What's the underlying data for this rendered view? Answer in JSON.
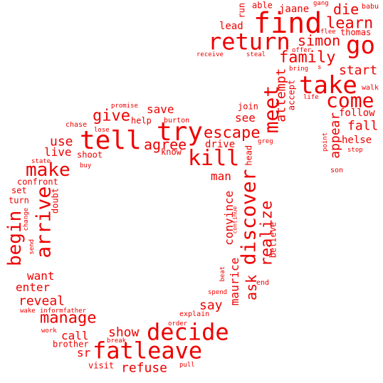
{
  "style": {
    "word_color": "#ee0000"
  },
  "words": [
    {
      "text": "find"
    },
    {
      "text": "go"
    },
    {
      "text": "tell"
    },
    {
      "text": "try"
    },
    {
      "text": "take"
    },
    {
      "text": "return"
    },
    {
      "text": "kill"
    },
    {
      "text": "fatleave"
    },
    {
      "text": "decide"
    },
    {
      "text": "meet"
    },
    {
      "text": "discover"
    },
    {
      "text": "arrive"
    },
    {
      "text": "make"
    },
    {
      "text": "begin"
    },
    {
      "text": "come"
    },
    {
      "text": "learn"
    },
    {
      "text": "family"
    },
    {
      "text": "escape"
    },
    {
      "text": "die"
    },
    {
      "text": "simon"
    },
    {
      "text": "start"
    },
    {
      "text": "fall"
    },
    {
      "text": "appear"
    },
    {
      "text": "give"
    },
    {
      "text": "agree"
    },
    {
      "text": "use"
    },
    {
      "text": "live"
    },
    {
      "text": "save"
    },
    {
      "text": "see"
    },
    {
      "text": "realize"
    },
    {
      "text": "ask"
    },
    {
      "text": "convince"
    },
    {
      "text": "maurice"
    },
    {
      "text": "say"
    },
    {
      "text": "show"
    },
    {
      "text": "manage"
    },
    {
      "text": "call"
    },
    {
      "text": "reveal"
    },
    {
      "text": "want"
    },
    {
      "text": "enter"
    },
    {
      "text": "refuse"
    },
    {
      "text": "sr"
    },
    {
      "text": "attempt"
    },
    {
      "text": "man"
    },
    {
      "text": "drive"
    },
    {
      "text": "join"
    },
    {
      "text": "lead"
    },
    {
      "text": "jaane"
    },
    {
      "text": "thomas"
    },
    {
      "text": "follow"
    },
    {
      "text": "helse"
    },
    {
      "text": "shoot"
    },
    {
      "text": "turn"
    },
    {
      "text": "confront"
    },
    {
      "text": "set"
    },
    {
      "text": "doubt"
    },
    {
      "text": "brother"
    },
    {
      "text": "visit"
    },
    {
      "text": "able"
    },
    {
      "text": "run"
    },
    {
      "text": "accept"
    },
    {
      "text": "head"
    },
    {
      "text": "believe"
    },
    {
      "text": "burton"
    },
    {
      "text": "help"
    },
    {
      "text": "know"
    },
    {
      "text": "son"
    },
    {
      "text": "explain"
    },
    {
      "text": "chase"
    },
    {
      "text": "babu"
    },
    {
      "text": "walk"
    },
    {
      "text": "stop"
    },
    {
      "text": "point"
    },
    {
      "text": "receive"
    },
    {
      "text": "steal"
    },
    {
      "text": "bring"
    },
    {
      "text": "s"
    },
    {
      "text": "offer"
    },
    {
      "text": "flee"
    },
    {
      "text": "gang"
    },
    {
      "text": "life"
    },
    {
      "text": "greg"
    },
    {
      "text": "continue"
    },
    {
      "text": "promise"
    },
    {
      "text": "lose"
    },
    {
      "text": "state"
    },
    {
      "text": "buy"
    },
    {
      "text": "change"
    },
    {
      "text": "send"
    },
    {
      "text": "wake"
    },
    {
      "text": "informfather"
    },
    {
      "text": "work"
    },
    {
      "text": "break"
    },
    {
      "text": "order"
    },
    {
      "text": "pull"
    },
    {
      "text": "spend"
    },
    {
      "text": "beat"
    },
    {
      "text": "end"
    }
  ]
}
